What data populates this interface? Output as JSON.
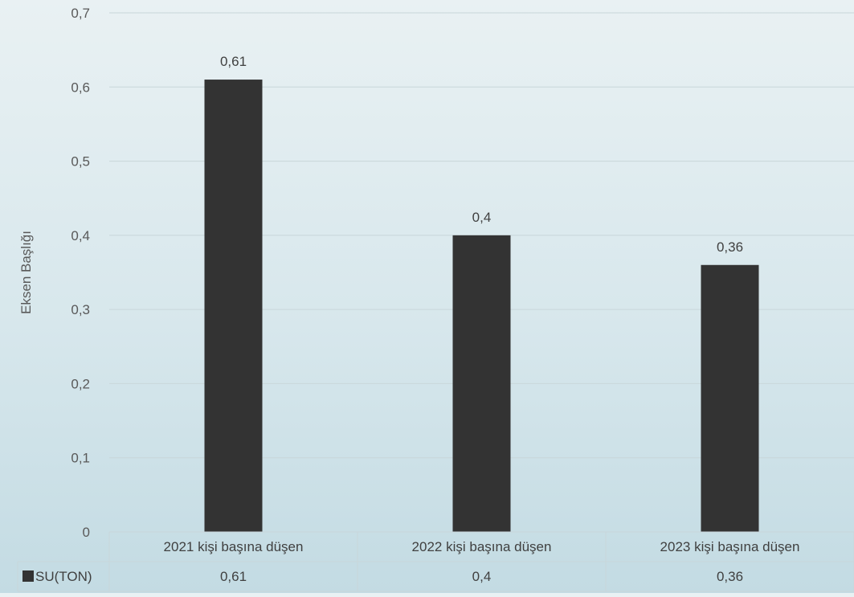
{
  "chart_data": {
    "type": "bar",
    "title": "",
    "xlabel": "",
    "ylabel": "Eksen Başlığı",
    "ylim": [
      0,
      0.7
    ],
    "yticks": [
      "0",
      "0,1",
      "0,2",
      "0,3",
      "0,4",
      "0,5",
      "0,6",
      "0,7"
    ],
    "categories": [
      "2021 kişi başına düşen",
      "2022 kişi başına düşen",
      "2023 kişi başına düşen"
    ],
    "series": [
      {
        "name": "SU(TON)",
        "values": [
          0.61,
          0.4,
          0.36
        ],
        "labels": [
          "0,61",
          "0,4",
          "0,36"
        ],
        "color": "#333333"
      }
    ],
    "grid": true,
    "data_table": true,
    "legend": "data-table"
  }
}
